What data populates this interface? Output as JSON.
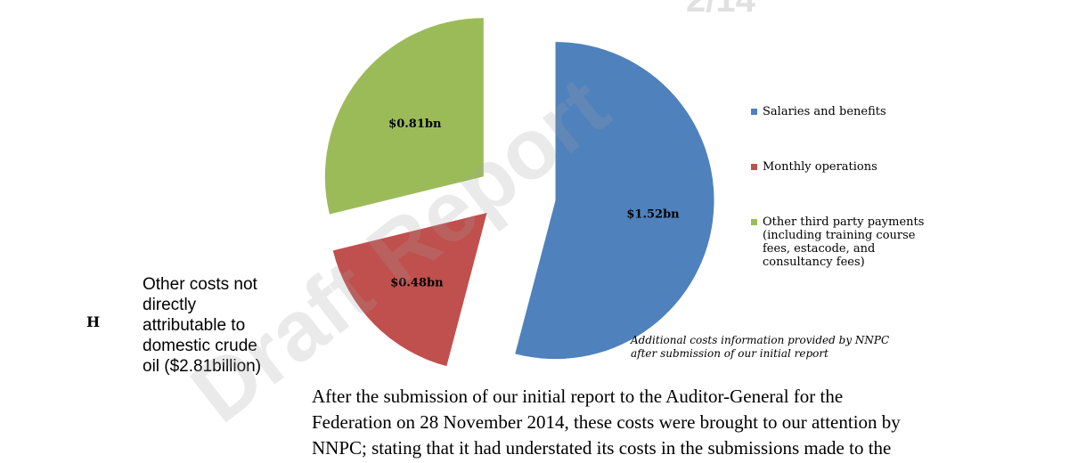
{
  "chart_data": {
    "type": "pie",
    "exploded": true,
    "slices": [
      {
        "name": "Salaries and benefits",
        "value": 1.52,
        "label": "$1.52bn",
        "color": "#4f81bd"
      },
      {
        "name": "Monthly operations",
        "value": 0.48,
        "label": "$0.48bn",
        "color": "#c0504d"
      },
      {
        "name": "Other third party payments (including training course fees, estacode, and consultancy fees)",
        "value": 0.81,
        "label": "$0.81bn",
        "color": "#9bbb59"
      }
    ],
    "legend_placement": "right"
  },
  "legend": {
    "items": [
      {
        "lines": [
          "Salaries and benefits"
        ],
        "color": "#4f81bd"
      },
      {
        "lines": [
          "Monthly operations"
        ],
        "color": "#c0504d"
      },
      {
        "lines": [
          "Other third party payments",
          "(including training course",
          "fees, estacode, and",
          "consultancy fees)"
        ],
        "color": "#9bbb59"
      }
    ]
  },
  "section": {
    "letter": "H",
    "heading_lines": [
      "Other costs not",
      "directly",
      "attributable to",
      "domestic crude",
      "oil ($2.81billion)"
    ]
  },
  "caption_lines": [
    "Additional costs information provided by NNPC",
    "after submission of our initial report"
  ],
  "body_lines": [
    "After the submission of our initial report to the Auditor-General for the",
    "Federation on 28 November 2014, these costs were brought to our attention by",
    "NNPC; stating that it had understated its costs in the submissions made to the"
  ],
  "watermark": {
    "text": "Draft Report"
  }
}
